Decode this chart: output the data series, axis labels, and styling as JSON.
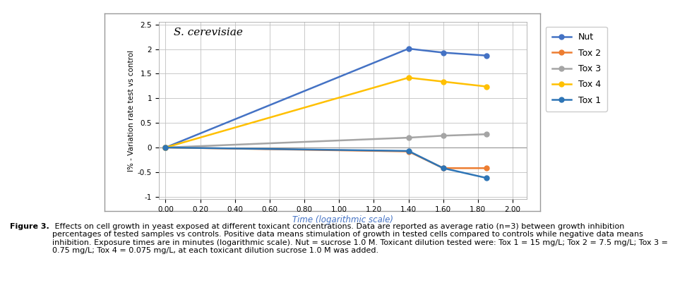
{
  "title": "S. cerevisiae",
  "xlabel": "Time (logarithmic scale)",
  "ylabel": "I% - Variation rate test vs control",
  "series": [
    {
      "name": "Nut",
      "color": "#4472C4",
      "x": [
        0.0,
        1.4,
        1.6,
        1.85
      ],
      "y": [
        0.0,
        2.01,
        1.93,
        1.87
      ]
    },
    {
      "name": "Tox 2",
      "color": "#ED7D31",
      "x": [
        0.0,
        1.4,
        1.6,
        1.85
      ],
      "y": [
        0.0,
        -0.08,
        -0.42,
        -0.42
      ]
    },
    {
      "name": "Tox 3",
      "color": "#A5A5A5",
      "x": [
        0.0,
        1.4,
        1.6,
        1.85
      ],
      "y": [
        0.0,
        0.2,
        0.24,
        0.27
      ]
    },
    {
      "name": "Tox 4",
      "color": "#FFC000",
      "x": [
        0.0,
        1.4,
        1.6,
        1.85
      ],
      "y": [
        0.0,
        1.42,
        1.34,
        1.24
      ]
    },
    {
      "name": "Tox 1",
      "color": "#2E75B6",
      "x": [
        0.0,
        1.4,
        1.6,
        1.85
      ],
      "y": [
        0.0,
        -0.07,
        -0.42,
        -0.62
      ]
    }
  ],
  "xlim": [
    -0.04,
    2.08
  ],
  "ylim": [
    -1.05,
    2.55
  ],
  "yticks": [
    -1.0,
    -0.5,
    0.0,
    0.5,
    1.0,
    1.5,
    2.0,
    2.5
  ],
  "ytick_labels": [
    "-1",
    "-0.5",
    "0",
    "0.5",
    "1",
    "1.5",
    "2",
    "2.5"
  ],
  "xticks": [
    0.0,
    0.2,
    0.4,
    0.6,
    0.8,
    1.0,
    1.2,
    1.4,
    1.6,
    1.8,
    2.0
  ],
  "xtick_labels": [
    "0.00",
    "0.20",
    "0.40",
    "0.60",
    "0.80",
    "1.00",
    "1.20",
    "1.40",
    "1.60",
    "1.80",
    "2.00"
  ],
  "background_color": "#FFFFFF",
  "plot_bg_color": "#FFFFFF",
  "grid_color": "#C0C0C0",
  "caption_bold": "Figure 3.",
  "caption_rest": " Effects on cell growth in yeast exposed at different toxicant concentrations. Data are reported as average ratio (n=3) between growth inhibition percentages of tested samples vs controls. Positive data means stimulation of growth in tested cells compared to controls while negative data means inhibition. Exposure times are in minutes (logarithmic scale). Nut = sucrose 1.0 M. Toxicant dilution tested were: Tox 1 = 15 mg/L; Tox 2 = 7.5 mg/L; Tox 3 = 0.75 mg/L; Tox 4 = 0.075 mg/L, at each toxicant dilution sucrose 1.0 M was added."
}
